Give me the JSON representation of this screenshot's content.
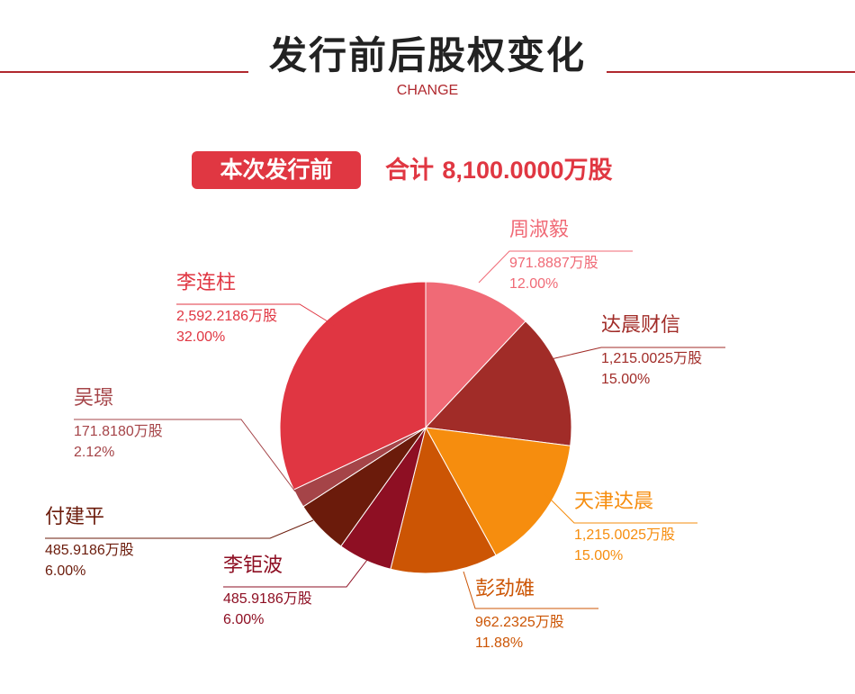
{
  "header": {
    "title": "发行前后股权变化",
    "subtitle": "CHANGE",
    "badge": "本次发行前",
    "total_prefix": "合计",
    "total_value": "8,100.0000万股"
  },
  "chart_data": {
    "type": "pie",
    "title": "",
    "slices": [
      {
        "name": "周淑毅",
        "shares": "971.8887万股",
        "percent_label": "12.00%",
        "value": 12.0,
        "color": "#f06a76"
      },
      {
        "name": "达晨财信",
        "shares": "1,215.0025万股",
        "percent_label": "15.00%",
        "value": 15.0,
        "color": "#a12c28"
      },
      {
        "name": "天津达晨",
        "shares": "1,215.0025万股",
        "percent_label": "15.00%",
        "value": 15.0,
        "color": "#f68d0e"
      },
      {
        "name": "彭劲雄",
        "shares": "962.2325万股",
        "percent_label": "11.88%",
        "value": 11.88,
        "color": "#cc5504"
      },
      {
        "name": "李钜波",
        "shares": "485.9186万股",
        "percent_label": "6.00%",
        "value": 6.0,
        "color": "#8e0f23"
      },
      {
        "name": "付建平",
        "shares": "485.9186万股",
        "percent_label": "6.00%",
        "value": 6.0,
        "color": "#6b1b0b"
      },
      {
        "name": "吴璟",
        "shares": "171.8180万股",
        "percent_label": "2.12%",
        "value": 2.12,
        "color": "#a54448"
      },
      {
        "name": "李连柱",
        "shares": "2,592.2186万股",
        "percent_label": "32.00%",
        "value": 32.0,
        "color": "#e03642"
      }
    ],
    "label_colors": {
      "周淑毅": "#f06a76",
      "达晨财信": "#a12c28",
      "天津达晨": "#f68d0e",
      "彭劲雄": "#cc5504",
      "李钜波": "#8e0f23",
      "付建平": "#6b1b0b",
      "吴璟": "#a54448",
      "李连柱": "#e03642"
    }
  }
}
